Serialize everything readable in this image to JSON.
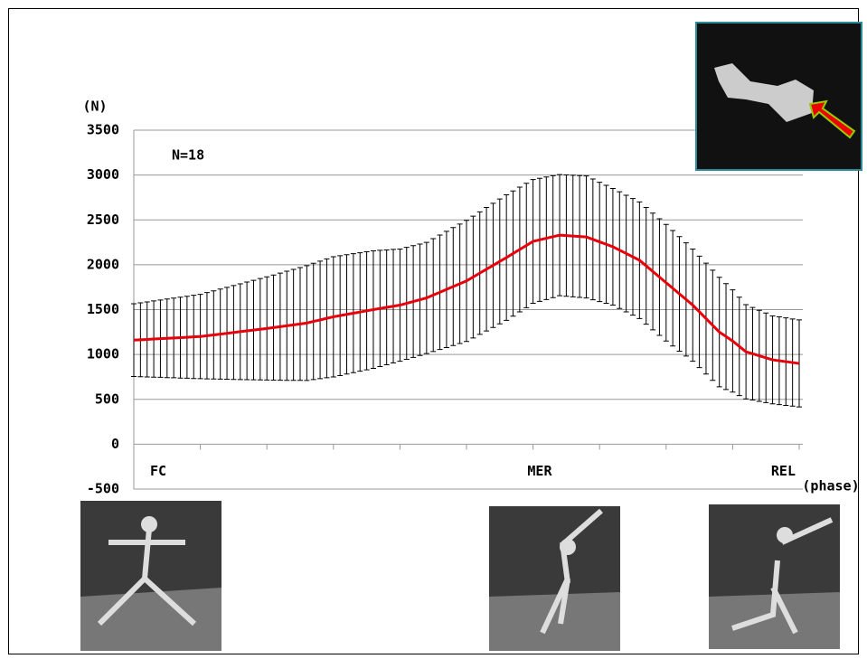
{
  "chart_data": {
    "type": "errorline",
    "y_label": "(N)",
    "x_label": "(phase)",
    "annotations": [
      {
        "text": "N=18"
      }
    ],
    "phase_labels": [
      {
        "text": "FC",
        "x": 0
      },
      {
        "text": "MER",
        "x": 61
      },
      {
        "text": "REL",
        "x": 100
      }
    ],
    "x": [
      0,
      1,
      2,
      3,
      4,
      5,
      6,
      7,
      8,
      9,
      10,
      11,
      12,
      13,
      14,
      15,
      16,
      17,
      18,
      19,
      20,
      21,
      22,
      23,
      24,
      25,
      26,
      27,
      28,
      29,
      30,
      31,
      32,
      33,
      34,
      35,
      36,
      37,
      38,
      39,
      40,
      41,
      42,
      43,
      44,
      45,
      46,
      47,
      48,
      49,
      50,
      51,
      52,
      53,
      54,
      55,
      56,
      57,
      58,
      59,
      60,
      61,
      62,
      63,
      64,
      65,
      66,
      67,
      68,
      69,
      70,
      71,
      72,
      73,
      74,
      75,
      76,
      77,
      78,
      79,
      80,
      81,
      82,
      83,
      84,
      85,
      86,
      87,
      88,
      89,
      90,
      91,
      92,
      93,
      94,
      95,
      96,
      97,
      98,
      99,
      100
    ],
    "series": [
      {
        "color": "#e8000b",
        "error_color": "#000000",
        "values": [
          1160,
          1164,
          1168,
          1172,
          1176,
          1180,
          1184,
          1188,
          1192,
          1196,
          1200,
          1209,
          1218,
          1227,
          1236,
          1245,
          1254,
          1263,
          1272,
          1281,
          1290,
          1300,
          1310,
          1320,
          1330,
          1340,
          1350,
          1368,
          1385,
          1403,
          1420,
          1433,
          1447,
          1460,
          1473,
          1487,
          1500,
          1513,
          1525,
          1538,
          1550,
          1570,
          1590,
          1610,
          1630,
          1662,
          1693,
          1725,
          1757,
          1788,
          1820,
          1863,
          1907,
          1950,
          1993,
          2037,
          2080,
          2125,
          2170,
          2215,
          2260,
          2278,
          2295,
          2313,
          2330,
          2325,
          2320,
          2315,
          2310,
          2283,
          2255,
          2228,
          2200,
          2163,
          2125,
          2088,
          2050,
          1988,
          1925,
          1863,
          1800,
          1738,
          1675,
          1613,
          1550,
          1475,
          1400,
          1325,
          1250,
          1200,
          1150,
          1090,
          1030,
          1008,
          985,
          963,
          940,
          930,
          920,
          910,
          900
        ],
        "errors": [
          405,
          412,
          418,
          425,
          431,
          438,
          444,
          451,
          457,
          464,
          470,
          481,
          491,
          502,
          512,
          523,
          533,
          544,
          554,
          565,
          575,
          586,
          597,
          608,
          618,
          629,
          640,
          648,
          655,
          663,
          670,
          668,
          665,
          663,
          660,
          658,
          655,
          648,
          640,
          633,
          625,
          624,
          623,
          621,
          620,
          629,
          638,
          648,
          657,
          666,
          675,
          679,
          683,
          688,
          692,
          696,
          700,
          698,
          695,
          693,
          690,
          686,
          683,
          679,
          675,
          676,
          678,
          679,
          680,
          673,
          665,
          658,
          650,
          650,
          650,
          650,
          650,
          650,
          650,
          650,
          650,
          644,
          638,
          631,
          625,
          621,
          618,
          614,
          610,
          590,
          570,
          548,
          525,
          516,
          508,
          499,
          490,
          489,
          488,
          486,
          485
        ]
      }
    ],
    "xlim": [
      0,
      100
    ],
    "xticks": [
      0,
      10,
      20,
      30,
      40,
      50,
      60,
      70,
      80,
      90,
      100
    ],
    "ylim": [
      -500,
      3500
    ],
    "yticks": [
      -500,
      0,
      500,
      1000,
      1500,
      2000,
      2500,
      3000,
      3500
    ],
    "grid": true
  }
}
